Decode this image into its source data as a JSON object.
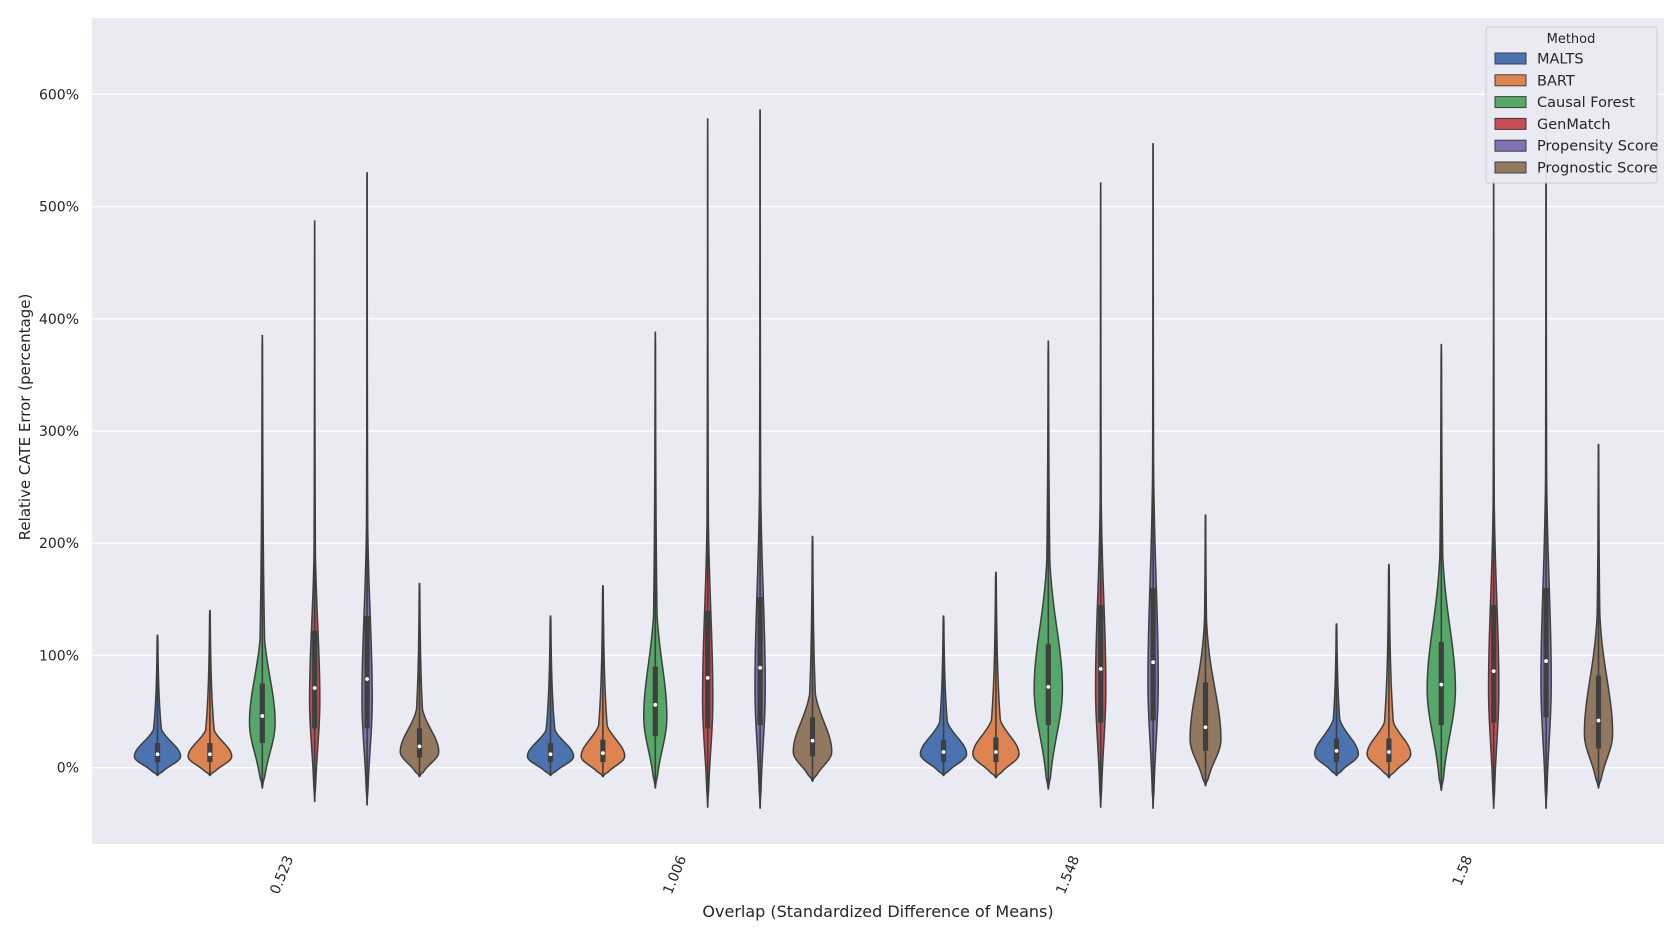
{
  "chart_data": {
    "type": "violin",
    "xlabel": "Overlap (Standardized Difference of Means)",
    "ylabel": "Relative CATE Error (percentage)",
    "categories": [
      "0.523",
      "1.006",
      "1.548",
      "1.58"
    ],
    "ylim": [
      -68,
      668
    ],
    "yticks": [
      0,
      100,
      200,
      300,
      400,
      500,
      600
    ],
    "ytick_labels": [
      "0%",
      "100%",
      "200%",
      "300%",
      "400%",
      "500%",
      "600%"
    ],
    "grid": true,
    "background": "#eaeaf2",
    "legend": {
      "title": "Method",
      "placement": "top-right"
    },
    "series": [
      {
        "name": "MALTS",
        "color": "#4c72b0",
        "stats": [
          {
            "min": -7,
            "q1": 5,
            "median": 12,
            "q3": 22,
            "max": 118,
            "mode": 10,
            "width": 0.9
          },
          {
            "min": -7,
            "q1": 5,
            "median": 12,
            "q3": 22,
            "max": 135,
            "mode": 10,
            "width": 0.9
          },
          {
            "min": -7,
            "q1": 5,
            "median": 14,
            "q3": 25,
            "max": 135,
            "mode": 12,
            "width": 0.9
          },
          {
            "min": -7,
            "q1": 5,
            "median": 15,
            "q3": 26,
            "max": 128,
            "mode": 12,
            "width": 0.85
          }
        ]
      },
      {
        "name": "BART",
        "color": "#dd8452",
        "stats": [
          {
            "min": -7,
            "q1": 5,
            "median": 12,
            "q3": 22,
            "max": 140,
            "mode": 10,
            "width": 0.85
          },
          {
            "min": -8,
            "q1": 5,
            "median": 13,
            "q3": 25,
            "max": 162,
            "mode": 10,
            "width": 0.85
          },
          {
            "min": -9,
            "q1": 5,
            "median": 14,
            "q3": 27,
            "max": 174,
            "mode": 12,
            "width": 0.9
          },
          {
            "min": -9,
            "q1": 5,
            "median": 14,
            "q3": 26,
            "max": 181,
            "mode": 12,
            "width": 0.85
          }
        ]
      },
      {
        "name": "Causal Forest",
        "color": "#55a868",
        "stats": [
          {
            "min": -18,
            "q1": 22,
            "median": 46,
            "q3": 75,
            "max": 385,
            "mode": 40,
            "width": 0.5
          },
          {
            "min": -18,
            "q1": 28,
            "median": 56,
            "q3": 90,
            "max": 388,
            "mode": 45,
            "width": 0.45
          },
          {
            "min": -19,
            "q1": 38,
            "median": 72,
            "q3": 110,
            "max": 380,
            "mode": 70,
            "width": 0.55
          },
          {
            "min": -20,
            "q1": 38,
            "median": 74,
            "q3": 112,
            "max": 377,
            "mode": 70,
            "width": 0.55
          }
        ]
      },
      {
        "name": "GenMatch",
        "color": "#c44e52",
        "stats": [
          {
            "min": -30,
            "q1": 35,
            "median": 71,
            "q3": 122,
            "max": 487,
            "mode": 60,
            "width": 0.2
          },
          {
            "min": -35,
            "q1": 35,
            "median": 80,
            "q3": 140,
            "max": 578,
            "mode": 60,
            "width": 0.2
          },
          {
            "min": -35,
            "q1": 40,
            "median": 88,
            "q3": 145,
            "max": 521,
            "mode": 70,
            "width": 0.2
          },
          {
            "min": -36,
            "q1": 40,
            "median": 86,
            "q3": 145,
            "max": 525,
            "mode": 70,
            "width": 0.2
          }
        ]
      },
      {
        "name": "Propensity Score",
        "color": "#8172b3",
        "stats": [
          {
            "min": -33,
            "q1": 35,
            "median": 79,
            "q3": 135,
            "max": 530,
            "mode": 60,
            "width": 0.2
          },
          {
            "min": -36,
            "q1": 38,
            "median": 89,
            "q3": 152,
            "max": 586,
            "mode": 70,
            "width": 0.2
          },
          {
            "min": -36,
            "q1": 42,
            "median": 94,
            "q3": 160,
            "max": 556,
            "mode": 75,
            "width": 0.2
          },
          {
            "min": -36,
            "q1": 45,
            "median": 95,
            "q3": 160,
            "max": 590,
            "mode": 75,
            "width": 0.2
          }
        ]
      },
      {
        "name": "Prognostic Score",
        "color": "#937860",
        "stats": [
          {
            "min": -8,
            "q1": 9,
            "median": 19,
            "q3": 35,
            "max": 164,
            "mode": 14,
            "width": 0.75
          },
          {
            "min": -12,
            "q1": 10,
            "median": 24,
            "q3": 45,
            "max": 206,
            "mode": 14,
            "width": 0.75
          },
          {
            "min": -16,
            "q1": 15,
            "median": 36,
            "q3": 76,
            "max": 225,
            "mode": 25,
            "width": 0.6
          },
          {
            "min": -18,
            "q1": 17,
            "median": 42,
            "q3": 82,
            "max": 288,
            "mode": 30,
            "width": 0.55
          }
        ]
      }
    ]
  }
}
